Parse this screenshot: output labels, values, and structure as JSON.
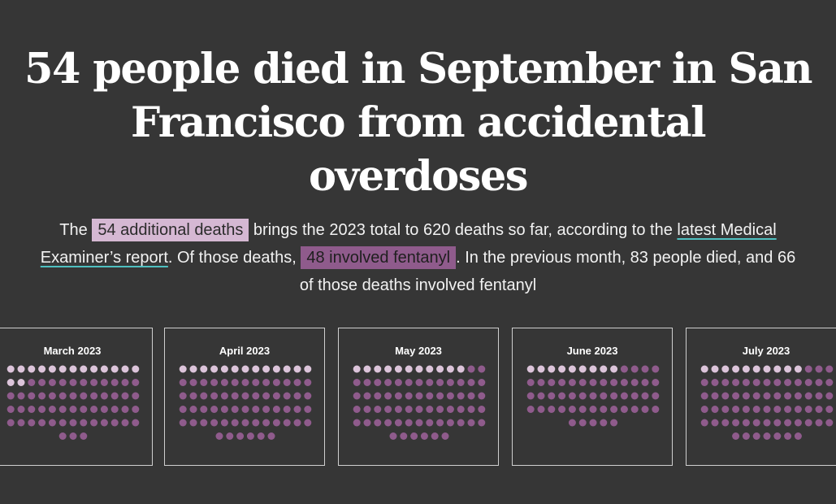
{
  "headline": "54 people died in September in San Francisco from accidental overdoses",
  "dek": {
    "p1": "The ",
    "highlight_deaths": "54 additional deaths",
    "p2": " brings the 2023 total to 620 deaths so far, according to the ",
    "link": "latest Medical Examiner’s report",
    "p3": ". Of those deaths, ",
    "highlight_fentanyl": "48 involved fentanyl",
    "p4": ". In the previous month, 83 people died, and 66 of those deaths involved fentanyl"
  },
  "colors": {
    "background": "#363636",
    "non_fentanyl": "#dcc4da",
    "fentanyl": "#8f5b8c",
    "panel_border": "#cfcfcf"
  },
  "chart_data": {
    "type": "unit",
    "unit": "one dot per death",
    "dots_per_row": 13,
    "months": [
      {
        "label": "March 2023",
        "total": 68,
        "fentanyl": 53
      },
      {
        "label": "April 2023",
        "total": 71,
        "fentanyl": 58
      },
      {
        "label": "May 2023",
        "total": 71,
        "fentanyl": 60
      },
      {
        "label": "June 2023",
        "total": 57,
        "fentanyl": 48
      },
      {
        "label": "July 2023",
        "total": 72,
        "fentanyl": 62
      }
    ]
  }
}
